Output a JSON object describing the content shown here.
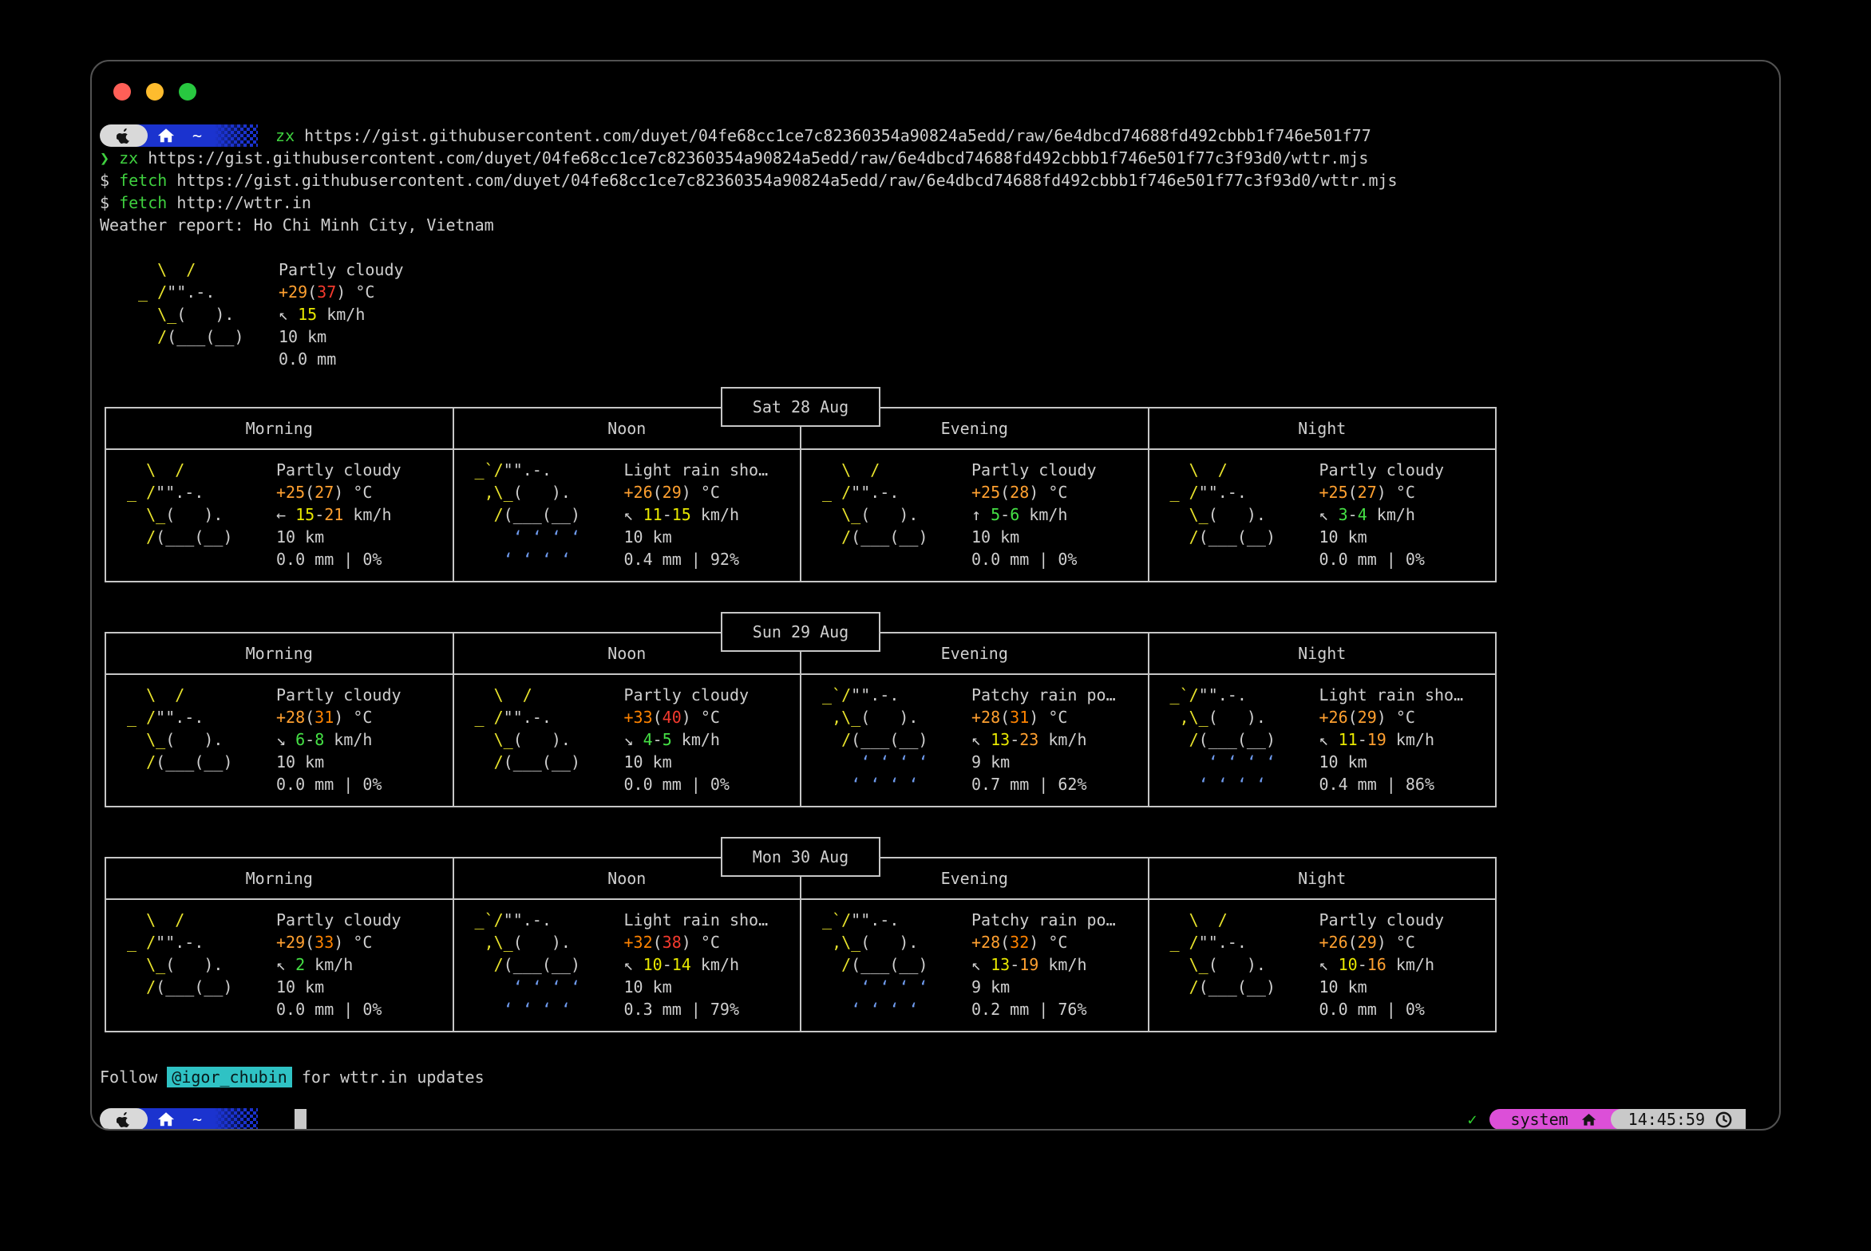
{
  "window": {
    "traffic": {
      "close": "#ff5f57",
      "minimize": "#febc2e",
      "zoom": "#28c840"
    }
  },
  "prompt": {
    "tilde": "~"
  },
  "lines": {
    "l1": [
      [
        [
          "grn",
          "zx"
        ],
        [
          "fg",
          " https://gist.githubusercontent.com/duyet/04fe68cc1ce7c82360354a90824a5edd/raw/6e4dbcd74688fd492cbbb1f746e501f77"
        ]
      ]
    ],
    "l2": [
      [
        [
          "grn",
          "❯ zx"
        ],
        [
          "fg",
          " https://gist.githubusercontent.com/duyet/04fe68cc1ce7c82360354a90824a5edd/raw/6e4dbcd74688fd492cbbb1f746e501f77c3f93d0/wttr.mjs"
        ]
      ]
    ],
    "l3": [
      [
        [
          "fg",
          "$ "
        ],
        [
          "grn",
          "fetch"
        ],
        [
          "fg",
          " https://gist.githubusercontent.com/duyet/04fe68cc1ce7c82360354a90824a5edd/raw/6e4dbcd74688fd492cbbb1f746e501f77c3f93d0/wttr.mjs"
        ]
      ]
    ],
    "l4": [
      [
        [
          "fg",
          "$ "
        ],
        [
          "grn",
          "fetch"
        ],
        [
          "fg",
          " http://wttr.in"
        ]
      ]
    ],
    "l5": [
      [
        [
          "fg",
          "Weather report: Ho Chi Minh City, Vietnam"
        ]
      ]
    ],
    "footer": [
      [
        [
          "fg",
          "Follow "
        ],
        [
          "hl",
          "@igor_chubin"
        ],
        [
          "fg",
          " for wttr.in updates"
        ]
      ]
    ]
  },
  "icons": {
    "partly": [
      [
        [
          "sun",
          "   \\  /"
        ]
      ],
      [
        [
          "sun",
          " _ /"
        ],
        [
          "cloud",
          "\"\".-."
        ]
      ],
      [
        [
          "sun",
          "   \\_"
        ],
        [
          "cloud",
          "(   )."
        ]
      ],
      [
        [
          "sun",
          "   /"
        ],
        [
          "cloud",
          "(___(__)"
        ]
      ],
      [
        [
          "cloud",
          ""
        ]
      ]
    ],
    "rain": [
      [
        [
          "sun",
          " _`/"
        ],
        [
          "cloud",
          "\"\".-."
        ]
      ],
      [
        [
          "sun",
          "  ,\\_"
        ],
        [
          "cloud",
          "(   )."
        ]
      ],
      [
        [
          "sun",
          "   /"
        ],
        [
          "cloud",
          "(___(__)"
        ]
      ],
      [
        [
          "rain",
          "     ‘ ‘ ‘ ‘"
        ]
      ],
      [
        [
          "rain",
          "    ‘ ‘ ‘ ‘"
        ]
      ]
    ]
  },
  "current": {
    "icon": "partly",
    "info": [
      [
        [
          "fg",
          "Partly cloudy"
        ]
      ],
      [
        [
          "o",
          "+29"
        ],
        [
          "fg",
          "("
        ],
        [
          "r",
          "37"
        ],
        [
          "fg",
          ") °C"
        ]
      ],
      [
        [
          "fg",
          "↖ "
        ],
        [
          "y",
          "15"
        ],
        [
          "fg",
          " km/h"
        ]
      ],
      [
        [
          "fg",
          "10 km"
        ]
      ],
      [
        [
          "fg",
          "0.0 mm"
        ]
      ]
    ]
  },
  "columns": [
    "Morning",
    "Noon",
    "Evening",
    "Night"
  ],
  "days": [
    {
      "label": "Sat 28 Aug",
      "cells": [
        {
          "icon": "partly",
          "info": [
            [
              [
                "fg",
                "Partly cloudy"
              ]
            ],
            [
              [
                "o",
                "+25"
              ],
              [
                "fg",
                "("
              ],
              [
                "o",
                "27"
              ],
              [
                "fg",
                ") °C"
              ]
            ],
            [
              [
                "fg",
                "← "
              ],
              [
                "y",
                "15"
              ],
              [
                "fg",
                "-"
              ],
              [
                "o",
                "21"
              ],
              [
                "fg",
                " km/h"
              ]
            ],
            [
              [
                "fg",
                "10 km"
              ]
            ],
            [
              [
                "fg",
                "0.0 mm | 0%"
              ]
            ]
          ]
        },
        {
          "icon": "rain",
          "info": [
            [
              [
                "fg",
                "Light rain sho…"
              ]
            ],
            [
              [
                "o",
                "+26"
              ],
              [
                "fg",
                "("
              ],
              [
                "o",
                "29"
              ],
              [
                "fg",
                ") °C"
              ]
            ],
            [
              [
                "fg",
                "↖ "
              ],
              [
                "y",
                "11"
              ],
              [
                "fg",
                "-"
              ],
              [
                "y",
                "15"
              ],
              [
                "fg",
                " km/h"
              ]
            ],
            [
              [
                "fg",
                "10 km"
              ]
            ],
            [
              [
                "fg",
                "0.4 mm | 92%"
              ]
            ]
          ]
        },
        {
          "icon": "partly",
          "info": [
            [
              [
                "fg",
                "Partly cloudy"
              ]
            ],
            [
              [
                "o",
                "+25"
              ],
              [
                "fg",
                "("
              ],
              [
                "o",
                "28"
              ],
              [
                "fg",
                ") °C"
              ]
            ],
            [
              [
                "fg",
                "↑ "
              ],
              [
                "g",
                "5"
              ],
              [
                "fg",
                "-"
              ],
              [
                "g",
                "6"
              ],
              [
                "fg",
                " km/h"
              ]
            ],
            [
              [
                "fg",
                "10 km"
              ]
            ],
            [
              [
                "fg",
                "0.0 mm | 0%"
              ]
            ]
          ]
        },
        {
          "icon": "partly",
          "info": [
            [
              [
                "fg",
                "Partly cloudy"
              ]
            ],
            [
              [
                "o",
                "+25"
              ],
              [
                "fg",
                "("
              ],
              [
                "o",
                "27"
              ],
              [
                "fg",
                ") °C"
              ]
            ],
            [
              [
                "fg",
                "↖ "
              ],
              [
                "g",
                "3"
              ],
              [
                "fg",
                "-"
              ],
              [
                "g",
                "4"
              ],
              [
                "fg",
                " km/h"
              ]
            ],
            [
              [
                "fg",
                "10 km"
              ]
            ],
            [
              [
                "fg",
                "0.0 mm | 0%"
              ]
            ]
          ]
        }
      ]
    },
    {
      "label": "Sun 29 Aug",
      "cells": [
        {
          "icon": "partly",
          "info": [
            [
              [
                "fg",
                "Partly cloudy"
              ]
            ],
            [
              [
                "o",
                "+28"
              ],
              [
                "fg",
                "("
              ],
              [
                "d",
                "31"
              ],
              [
                "fg",
                ") °C"
              ]
            ],
            [
              [
                "fg",
                "↘ "
              ],
              [
                "g",
                "6"
              ],
              [
                "fg",
                "-"
              ],
              [
                "g",
                "8"
              ],
              [
                "fg",
                " km/h"
              ]
            ],
            [
              [
                "fg",
                "10 km"
              ]
            ],
            [
              [
                "fg",
                "0.0 mm | 0%"
              ]
            ]
          ]
        },
        {
          "icon": "partly",
          "info": [
            [
              [
                "fg",
                "Partly cloudy"
              ]
            ],
            [
              [
                "d",
                "+33"
              ],
              [
                "fg",
                "("
              ],
              [
                "r",
                "40"
              ],
              [
                "fg",
                ") °C"
              ]
            ],
            [
              [
                "fg",
                "↘ "
              ],
              [
                "g",
                "4"
              ],
              [
                "fg",
                "-"
              ],
              [
                "g",
                "5"
              ],
              [
                "fg",
                " km/h"
              ]
            ],
            [
              [
                "fg",
                "10 km"
              ]
            ],
            [
              [
                "fg",
                "0.0 mm | 0%"
              ]
            ]
          ]
        },
        {
          "icon": "rain",
          "info": [
            [
              [
                "fg",
                "Patchy rain po…"
              ]
            ],
            [
              [
                "o",
                "+28"
              ],
              [
                "fg",
                "("
              ],
              [
                "d",
                "31"
              ],
              [
                "fg",
                ") °C"
              ]
            ],
            [
              [
                "fg",
                "↖ "
              ],
              [
                "y",
                "13"
              ],
              [
                "fg",
                "-"
              ],
              [
                "o",
                "23"
              ],
              [
                "fg",
                " km/h"
              ]
            ],
            [
              [
                "fg",
                "9 km"
              ]
            ],
            [
              [
                "fg",
                "0.7 mm | 62%"
              ]
            ]
          ]
        },
        {
          "icon": "rain",
          "info": [
            [
              [
                "fg",
                "Light rain sho…"
              ]
            ],
            [
              [
                "o",
                "+26"
              ],
              [
                "fg",
                "("
              ],
              [
                "o",
                "29"
              ],
              [
                "fg",
                ") °C"
              ]
            ],
            [
              [
                "fg",
                "↖ "
              ],
              [
                "y",
                "11"
              ],
              [
                "fg",
                "-"
              ],
              [
                "o",
                "19"
              ],
              [
                "fg",
                " km/h"
              ]
            ],
            [
              [
                "fg",
                "10 km"
              ]
            ],
            [
              [
                "fg",
                "0.4 mm | 86%"
              ]
            ]
          ]
        }
      ]
    },
    {
      "label": "Mon 30 Aug",
      "cells": [
        {
          "icon": "partly",
          "info": [
            [
              [
                "fg",
                "Partly cloudy"
              ]
            ],
            [
              [
                "o",
                "+29"
              ],
              [
                "fg",
                "("
              ],
              [
                "d",
                "33"
              ],
              [
                "fg",
                ") °C"
              ]
            ],
            [
              [
                "fg",
                "↖ "
              ],
              [
                "g",
                "2"
              ],
              [
                "fg",
                " km/h"
              ]
            ],
            [
              [
                "fg",
                "10 km"
              ]
            ],
            [
              [
                "fg",
                "0.0 mm | 0%"
              ]
            ]
          ]
        },
        {
          "icon": "rain",
          "info": [
            [
              [
                "fg",
                "Light rain sho…"
              ]
            ],
            [
              [
                "d",
                "+32"
              ],
              [
                "fg",
                "("
              ],
              [
                "r",
                "38"
              ],
              [
                "fg",
                ") °C"
              ]
            ],
            [
              [
                "fg",
                "↖ "
              ],
              [
                "y",
                "10"
              ],
              [
                "fg",
                "-"
              ],
              [
                "y",
                "14"
              ],
              [
                "fg",
                " km/h"
              ]
            ],
            [
              [
                "fg",
                "10 km"
              ]
            ],
            [
              [
                "fg",
                "0.3 mm | 79%"
              ]
            ]
          ]
        },
        {
          "icon": "rain",
          "info": [
            [
              [
                "fg",
                "Patchy rain po…"
              ]
            ],
            [
              [
                "o",
                "+28"
              ],
              [
                "fg",
                "("
              ],
              [
                "d",
                "32"
              ],
              [
                "fg",
                ") °C"
              ]
            ],
            [
              [
                "fg",
                "↖ "
              ],
              [
                "y",
                "13"
              ],
              [
                "fg",
                "-"
              ],
              [
                "o",
                "19"
              ],
              [
                "fg",
                " km/h"
              ]
            ],
            [
              [
                "fg",
                "9 km"
              ]
            ],
            [
              [
                "fg",
                "0.2 mm | 76%"
              ]
            ]
          ]
        },
        {
          "icon": "partly",
          "info": [
            [
              [
                "fg",
                "Partly cloudy"
              ]
            ],
            [
              [
                "o",
                "+26"
              ],
              [
                "fg",
                "("
              ],
              [
                "o",
                "29"
              ],
              [
                "fg",
                ") °C"
              ]
            ],
            [
              [
                "fg",
                "↖ "
              ],
              [
                "y",
                "10"
              ],
              [
                "fg",
                "-"
              ],
              [
                "o",
                "16"
              ],
              [
                "fg",
                " km/h"
              ]
            ],
            [
              [
                "fg",
                "10 km"
              ]
            ],
            [
              [
                "fg",
                "0.0 mm | 0%"
              ]
            ]
          ]
        }
      ]
    }
  ],
  "status": {
    "check": "✓",
    "system_label": "system",
    "time": "14:45:59"
  }
}
